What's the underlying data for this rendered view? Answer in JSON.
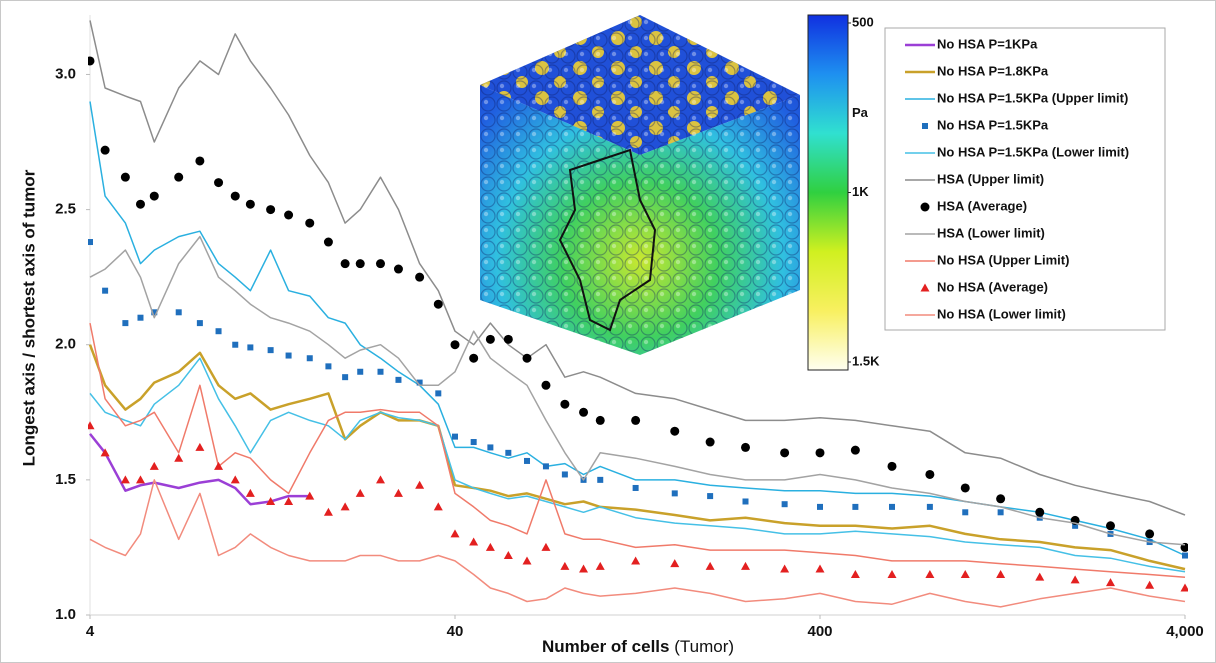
{
  "chart_data": {
    "type": "line",
    "xlabel": "Number of cells",
    "xlabel_note": "(Tumor)",
    "ylabel": "Longest axis / shortest axis of tumor",
    "xscale": "log",
    "xlim": [
      4,
      4000
    ],
    "xticks": [
      4,
      40,
      400,
      {
        "value": 4000,
        "label": "4,000"
      }
    ],
    "ylim": [
      1,
      3.22
    ],
    "yticks": [
      {
        "value": 1,
        "label": "1.0"
      },
      1.5,
      {
        "value": 2,
        "label": "2.0"
      },
      2.5,
      {
        "value": 3,
        "label": "3.0"
      }
    ],
    "legend": "upper right",
    "x": [
      4,
      4.4,
      5,
      5.5,
      6,
      7,
      8,
      9,
      10,
      11,
      12.5,
      14,
      16,
      18,
      20,
      22,
      25,
      28,
      32,
      36,
      40,
      45,
      50,
      56,
      63,
      71,
      80,
      90,
      100,
      125,
      160,
      200,
      250,
      320,
      400,
      500,
      630,
      800,
      1000,
      1250,
      1600,
      2000,
      2500,
      3200,
      4000
    ],
    "series": [
      {
        "name": "No HSA P=1KPa",
        "color": "#9b3fd6",
        "marker": "line",
        "width": 2.5,
        "x": [
          4,
          4.4,
          5,
          5.5,
          6,
          7,
          8,
          9,
          10,
          11,
          12.5,
          14,
          16
        ],
        "values": [
          1.67,
          1.6,
          1.46,
          1.48,
          1.49,
          1.47,
          1.49,
          1.5,
          1.47,
          1.41,
          1.42,
          1.44,
          1.44
        ]
      },
      {
        "name": "No HSA P=1.8KPa",
        "color": "#c9a12a",
        "marker": "line",
        "width": 2.5,
        "values": [
          2.0,
          1.85,
          1.76,
          1.8,
          1.86,
          1.9,
          1.97,
          1.85,
          1.8,
          1.82,
          1.76,
          1.78,
          1.8,
          1.82,
          1.65,
          1.7,
          1.75,
          1.72,
          1.72,
          1.7,
          1.48,
          1.47,
          1.46,
          1.44,
          1.45,
          1.43,
          1.41,
          1.42,
          1.4,
          1.39,
          1.37,
          1.35,
          1.36,
          1.34,
          1.33,
          1.33,
          1.32,
          1.33,
          1.3,
          1.28,
          1.27,
          1.25,
          1.24,
          1.2,
          1.17
        ]
      },
      {
        "name": "No HSA P=1.5KPa (Upper limit)",
        "color": "#2ab0e0",
        "marker": "line",
        "width": 1.5,
        "values": [
          2.9,
          2.55,
          2.45,
          2.3,
          2.35,
          2.4,
          2.42,
          2.3,
          2.25,
          2.2,
          2.35,
          2.2,
          2.18,
          2.1,
          2.08,
          2.0,
          1.95,
          1.9,
          1.85,
          1.78,
          1.62,
          1.62,
          1.6,
          1.58,
          1.6,
          1.55,
          1.56,
          1.52,
          1.55,
          1.5,
          1.5,
          1.48,
          1.47,
          1.46,
          1.46,
          1.45,
          1.45,
          1.44,
          1.42,
          1.4,
          1.38,
          1.35,
          1.32,
          1.28,
          1.22
        ]
      },
      {
        "name": "No HSA P=1.5KPa",
        "color": "#1f6fbd",
        "marker": "square",
        "values": [
          2.38,
          2.2,
          2.08,
          2.1,
          2.12,
          2.12,
          2.08,
          2.05,
          2.0,
          1.99,
          1.98,
          1.96,
          1.95,
          1.92,
          1.88,
          1.9,
          1.9,
          1.87,
          1.86,
          1.82,
          1.66,
          1.64,
          1.62,
          1.6,
          1.57,
          1.55,
          1.52,
          1.5,
          1.5,
          1.47,
          1.45,
          1.44,
          1.42,
          1.41,
          1.4,
          1.4,
          1.4,
          1.4,
          1.38,
          1.38,
          1.36,
          1.33,
          1.3,
          1.27,
          1.22
        ]
      },
      {
        "name": "No HSA P=1.5KPa (Lower limit)",
        "color": "#45c0e6",
        "marker": "line",
        "width": 1.5,
        "values": [
          1.82,
          1.75,
          1.72,
          1.7,
          1.78,
          1.85,
          1.95,
          1.8,
          1.7,
          1.6,
          1.72,
          1.75,
          1.72,
          1.7,
          1.65,
          1.72,
          1.75,
          1.73,
          1.72,
          1.7,
          1.5,
          1.47,
          1.45,
          1.43,
          1.44,
          1.42,
          1.4,
          1.38,
          1.4,
          1.36,
          1.34,
          1.33,
          1.32,
          1.3,
          1.3,
          1.31,
          1.3,
          1.29,
          1.27,
          1.26,
          1.25,
          1.22,
          1.21,
          1.18,
          1.16
        ]
      },
      {
        "name": "HSA (Upper limit)",
        "color": "#8c8c8c",
        "marker": "line",
        "width": 1.5,
        "values": [
          3.2,
          2.95,
          2.92,
          2.9,
          2.75,
          2.95,
          3.05,
          3.0,
          3.15,
          3.05,
          2.95,
          2.85,
          2.7,
          2.6,
          2.45,
          2.5,
          2.62,
          2.5,
          2.3,
          2.2,
          2.05,
          2.0,
          2.08,
          2.0,
          1.95,
          2.0,
          1.88,
          1.9,
          1.88,
          1.82,
          1.8,
          1.76,
          1.72,
          1.72,
          1.73,
          1.72,
          1.7,
          1.68,
          1.6,
          1.58,
          1.52,
          1.48,
          1.45,
          1.42,
          1.37
        ]
      },
      {
        "name": "HSA (Average)",
        "color": "#000000",
        "marker": "circle",
        "values": [
          3.05,
          2.72,
          2.62,
          2.52,
          2.55,
          2.62,
          2.68,
          2.6,
          2.55,
          2.52,
          2.5,
          2.48,
          2.45,
          2.38,
          2.3,
          2.3,
          2.3,
          2.28,
          2.25,
          2.15,
          2.0,
          1.95,
          2.02,
          2.02,
          1.95,
          1.85,
          1.78,
          1.75,
          1.72,
          1.72,
          1.68,
          1.64,
          1.62,
          1.6,
          1.6,
          1.61,
          1.55,
          1.52,
          1.47,
          1.43,
          1.38,
          1.35,
          1.33,
          1.3,
          1.25
        ]
      },
      {
        "name": "HSA (Lower limit)",
        "color": "#a3a3a3",
        "marker": "line",
        "width": 1.5,
        "values": [
          2.25,
          2.28,
          2.35,
          2.25,
          2.1,
          2.3,
          2.4,
          2.25,
          2.2,
          2.15,
          2.1,
          2.08,
          2.05,
          2.0,
          1.95,
          1.98,
          2.0,
          1.95,
          1.85,
          1.85,
          1.9,
          2.05,
          1.95,
          1.9,
          1.85,
          1.72,
          1.6,
          1.5,
          1.6,
          1.58,
          1.55,
          1.52,
          1.5,
          1.5,
          1.52,
          1.5,
          1.47,
          1.45,
          1.42,
          1.4,
          1.36,
          1.34,
          1.3,
          1.27,
          1.26
        ]
      },
      {
        "name": "No HSA (Upper Limit)",
        "color": "#f07a6a",
        "marker": "line",
        "width": 1.5,
        "values": [
          2.08,
          1.8,
          1.7,
          1.72,
          1.75,
          1.6,
          1.85,
          1.55,
          1.6,
          1.58,
          1.5,
          1.45,
          1.6,
          1.72,
          1.75,
          1.75,
          1.76,
          1.75,
          1.75,
          1.7,
          1.45,
          1.4,
          1.35,
          1.33,
          1.3,
          1.5,
          1.3,
          1.28,
          1.28,
          1.25,
          1.26,
          1.24,
          1.24,
          1.24,
          1.23,
          1.22,
          1.2,
          1.2,
          1.2,
          1.19,
          1.18,
          1.17,
          1.16,
          1.15,
          1.14
        ]
      },
      {
        "name": "No HSA (Average)",
        "color": "#e32020",
        "marker": "triangle",
        "values": [
          1.7,
          1.6,
          1.5,
          1.5,
          1.55,
          1.58,
          1.62,
          1.55,
          1.5,
          1.45,
          1.42,
          1.42,
          1.44,
          1.38,
          1.4,
          1.45,
          1.5,
          1.45,
          1.48,
          1.4,
          1.3,
          1.27,
          1.25,
          1.22,
          1.2,
          1.25,
          1.18,
          1.17,
          1.18,
          1.2,
          1.19,
          1.18,
          1.18,
          1.17,
          1.17,
          1.15,
          1.15,
          1.15,
          1.15,
          1.15,
          1.14,
          1.13,
          1.12,
          1.11,
          1.1
        ]
      },
      {
        "name": "No HSA (Lower limit)",
        "color": "#f28b7d",
        "marker": "line",
        "width": 1.5,
        "values": [
          1.28,
          1.25,
          1.22,
          1.3,
          1.5,
          1.28,
          1.45,
          1.22,
          1.25,
          1.3,
          1.25,
          1.22,
          1.2,
          1.2,
          1.2,
          1.22,
          1.22,
          1.2,
          1.2,
          1.22,
          1.2,
          1.15,
          1.1,
          1.08,
          1.05,
          1.06,
          1.1,
          1.08,
          1.07,
          1.08,
          1.1,
          1.08,
          1.05,
          1.06,
          1.08,
          1.05,
          1.04,
          1.08,
          1.05,
          1.03,
          1.06,
          1.08,
          1.1,
          1.07,
          1.05
        ]
      }
    ],
    "colorbar": {
      "label": "Pa",
      "lim": [
        500,
        1500
      ],
      "ticks": [
        500,
        {
          "value": 1000,
          "label": "1K"
        },
        {
          "value": 1500,
          "label": "1.5K"
        }
      ],
      "colors": [
        "#1030e0",
        "#1e90f0",
        "#30e0d0",
        "#30d040",
        "#d0f020",
        "#f8f060",
        "#fffff0"
      ]
    }
  }
}
